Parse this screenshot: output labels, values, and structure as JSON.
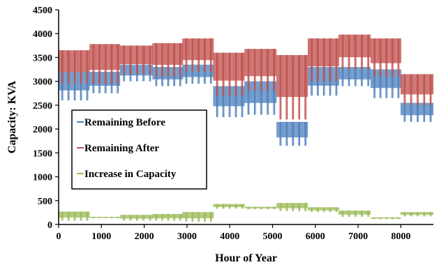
{
  "chart_data": {
    "type": "line",
    "xlabel": "Hour of Year",
    "ylabel": "Capacity:  KVA",
    "xlim": [
      0,
      8760
    ],
    "ylim": [
      0,
      4500
    ],
    "xticks": [
      0,
      1000,
      2000,
      3000,
      4000,
      5000,
      6000,
      7000,
      8000
    ],
    "yticks": [
      0,
      500,
      1000,
      1500,
      2000,
      2500,
      3000,
      3500,
      4000,
      4500
    ],
    "grid": false,
    "legend_position": "left-middle",
    "series": [
      {
        "name": "Remaining Before",
        "color": "#4F81BD",
        "segments": [
          {
            "x": [
              0,
              730
            ],
            "high": 3200,
            "low": 2600
          },
          {
            "x": [
              730,
              1440
            ],
            "high": 3200,
            "low": 2750
          },
          {
            "x": [
              1440,
              2200
            ],
            "high": 3350,
            "low": 3000
          },
          {
            "x": [
              2200,
              2900
            ],
            "high": 3300,
            "low": 2900
          },
          {
            "x": [
              2900,
              3620
            ],
            "high": 3350,
            "low": 2950
          },
          {
            "x": [
              3620,
              4350
            ],
            "high": 2900,
            "low": 2250
          },
          {
            "x": [
              4350,
              5100
            ],
            "high": 3000,
            "low": 2300
          },
          {
            "x": [
              5100,
              5830
            ],
            "high": 2150,
            "low": 1650
          },
          {
            "x": [
              5830,
              6550
            ],
            "high": 3300,
            "low": 2700
          },
          {
            "x": [
              6550,
              7300
            ],
            "high": 3300,
            "low": 2900
          },
          {
            "x": [
              7300,
              8000
            ],
            "high": 3250,
            "low": 2650
          },
          {
            "x": [
              8000,
              8760
            ],
            "high": 2550,
            "low": 2150
          }
        ]
      },
      {
        "name": "Remaining After",
        "color": "#C0504D",
        "segments": [
          {
            "x": [
              0,
              730
            ],
            "high": 3650,
            "low": 2950
          },
          {
            "x": [
              730,
              1440
            ],
            "high": 3780,
            "low": 2950
          },
          {
            "x": [
              1440,
              2200
            ],
            "high": 3750,
            "low": 3150
          },
          {
            "x": [
              2200,
              2900
            ],
            "high": 3800,
            "low": 3100
          },
          {
            "x": [
              2900,
              3620
            ],
            "high": 3900,
            "low": 3200
          },
          {
            "x": [
              3620,
              4350
            ],
            "high": 3600,
            "low": 2700
          },
          {
            "x": [
              4350,
              5100
            ],
            "high": 3680,
            "low": 2800
          },
          {
            "x": [
              5100,
              5830
            ],
            "high": 3550,
            "low": 2200
          },
          {
            "x": [
              5830,
              6550
            ],
            "high": 3900,
            "low": 3000
          },
          {
            "x": [
              6550,
              7300
            ],
            "high": 3980,
            "low": 3250
          },
          {
            "x": [
              7300,
              8000
            ],
            "high": 3900,
            "low": 3100
          },
          {
            "x": [
              8000,
              8760
            ],
            "high": 3150,
            "low": 2500
          }
        ]
      },
      {
        "name": "Increase in Capacity",
        "color": "#9BBB59",
        "segments": [
          {
            "x": [
              0,
              730
            ],
            "high": 270,
            "low": 80
          },
          {
            "x": [
              730,
              1440
            ],
            "high": 160,
            "low": 130
          },
          {
            "x": [
              1440,
              2200
            ],
            "high": 200,
            "low": 80
          },
          {
            "x": [
              2200,
              2900
            ],
            "high": 220,
            "low": 80
          },
          {
            "x": [
              2900,
              3620
            ],
            "high": 260,
            "low": 60
          },
          {
            "x": [
              3620,
              4350
            ],
            "high": 430,
            "low": 330
          },
          {
            "x": [
              4350,
              5100
            ],
            "high": 370,
            "low": 320
          },
          {
            "x": [
              5100,
              5830
            ],
            "high": 450,
            "low": 280
          },
          {
            "x": [
              5830,
              6550
            ],
            "high": 360,
            "low": 260
          },
          {
            "x": [
              6550,
              7300
            ],
            "high": 290,
            "low": 160
          },
          {
            "x": [
              7300,
              8000
            ],
            "high": 150,
            "low": 110
          },
          {
            "x": [
              8000,
              8760
            ],
            "high": 260,
            "low": 170
          }
        ]
      }
    ]
  }
}
